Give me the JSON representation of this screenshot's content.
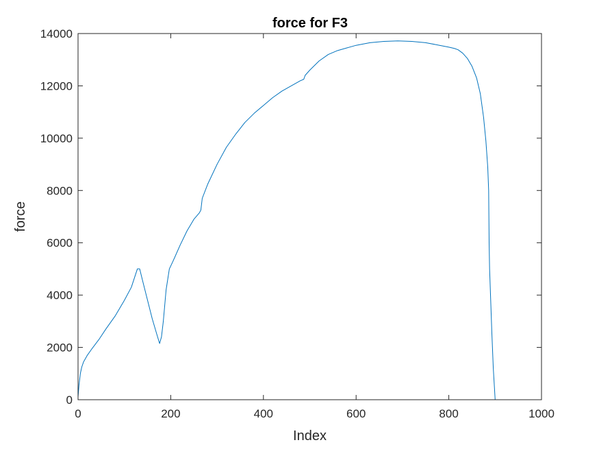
{
  "chart_data": {
    "type": "line",
    "title": "force for F3",
    "xlabel": "Index",
    "ylabel": "force",
    "xlim": [
      0,
      1000
    ],
    "ylim": [
      0,
      14000
    ],
    "xticks": [
      0,
      200,
      400,
      600,
      800,
      1000
    ],
    "yticks": [
      0,
      2000,
      4000,
      6000,
      8000,
      10000,
      12000,
      14000
    ],
    "grid": false,
    "series": [
      {
        "color": "#0072BD",
        "points": [
          [
            0,
            100
          ],
          [
            2,
            550
          ],
          [
            5,
            1000
          ],
          [
            8,
            1250
          ],
          [
            12,
            1450
          ],
          [
            20,
            1700
          ],
          [
            30,
            1950
          ],
          [
            45,
            2300
          ],
          [
            60,
            2700
          ],
          [
            80,
            3200
          ],
          [
            100,
            3800
          ],
          [
            115,
            4300
          ],
          [
            128,
            5000
          ],
          [
            133,
            5000
          ],
          [
            140,
            4500
          ],
          [
            150,
            3800
          ],
          [
            160,
            3100
          ],
          [
            170,
            2500
          ],
          [
            176,
            2150
          ],
          [
            180,
            2400
          ],
          [
            184,
            3000
          ],
          [
            190,
            4200
          ],
          [
            197,
            5000
          ],
          [
            205,
            5300
          ],
          [
            220,
            5900
          ],
          [
            235,
            6450
          ],
          [
            250,
            6900
          ],
          [
            262,
            7150
          ],
          [
            265,
            7250
          ],
          [
            268,
            7700
          ],
          [
            280,
            8250
          ],
          [
            300,
            9000
          ],
          [
            320,
            9650
          ],
          [
            340,
            10150
          ],
          [
            360,
            10600
          ],
          [
            380,
            10950
          ],
          [
            400,
            11250
          ],
          [
            420,
            11550
          ],
          [
            440,
            11800
          ],
          [
            460,
            12000
          ],
          [
            480,
            12200
          ],
          [
            487,
            12250
          ],
          [
            490,
            12400
          ],
          [
            500,
            12600
          ],
          [
            520,
            12950
          ],
          [
            540,
            13200
          ],
          [
            560,
            13350
          ],
          [
            580,
            13450
          ],
          [
            600,
            13550
          ],
          [
            630,
            13650
          ],
          [
            660,
            13700
          ],
          [
            690,
            13720
          ],
          [
            720,
            13700
          ],
          [
            750,
            13650
          ],
          [
            780,
            13550
          ],
          [
            800,
            13480
          ],
          [
            812,
            13430
          ],
          [
            820,
            13380
          ],
          [
            830,
            13250
          ],
          [
            840,
            13050
          ],
          [
            850,
            12750
          ],
          [
            860,
            12300
          ],
          [
            868,
            11700
          ],
          [
            875,
            10800
          ],
          [
            880,
            9900
          ],
          [
            884,
            8900
          ],
          [
            886,
            8000
          ],
          [
            887,
            6000
          ],
          [
            888,
            5000
          ],
          [
            890,
            4000
          ],
          [
            893,
            2500
          ],
          [
            896,
            1200
          ],
          [
            900,
            0
          ],
          [
            905,
            0
          ]
        ]
      }
    ]
  }
}
